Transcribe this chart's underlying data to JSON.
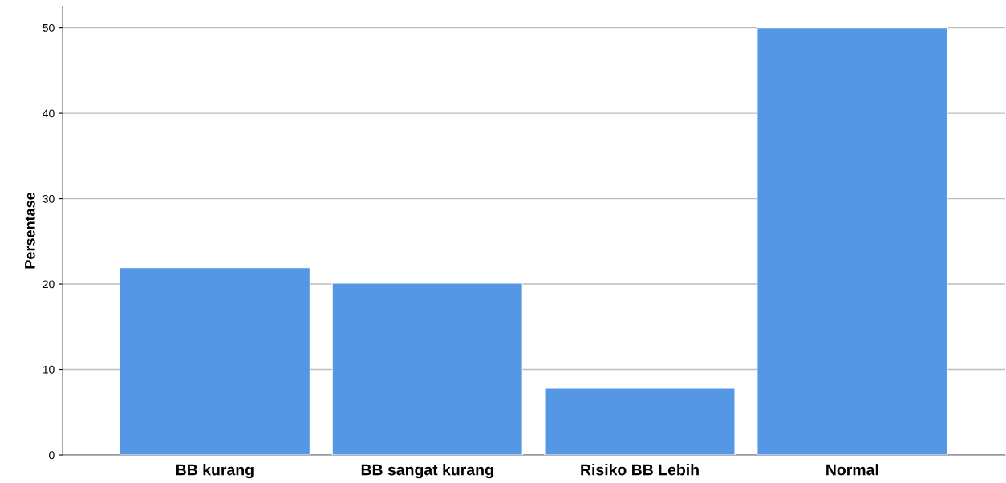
{
  "chart_data": {
    "type": "bar",
    "ylabel": "Persentase",
    "categories": [
      "BB kurang",
      "BB sangat kurang",
      "Risiko BB Lebih",
      "Normal"
    ],
    "values": [
      21.9,
      20.1,
      7.8,
      50.0
    ],
    "color": "#5596e5",
    "ylim": [
      0,
      52.5
    ],
    "yticks": [
      0,
      10,
      20,
      30,
      40,
      50
    ],
    "grid": "y"
  }
}
